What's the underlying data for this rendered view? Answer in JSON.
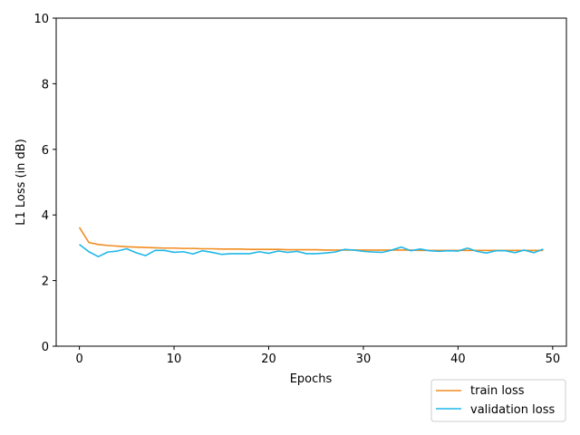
{
  "chart_data": {
    "type": "line",
    "title": "",
    "xlabel": "Epochs",
    "ylabel": "L1 Loss (in dB)",
    "xlim": [
      -2.45,
      51.45
    ],
    "ylim": [
      0,
      10
    ],
    "xticks": [
      0,
      10,
      20,
      30,
      40,
      50
    ],
    "yticks": [
      0,
      2,
      4,
      6,
      8,
      10
    ],
    "grid": false,
    "legend_position": "lower-right-outside",
    "x": [
      0,
      1,
      2,
      3,
      4,
      5,
      6,
      7,
      8,
      9,
      10,
      11,
      12,
      13,
      14,
      15,
      16,
      17,
      18,
      19,
      20,
      21,
      22,
      23,
      24,
      25,
      26,
      27,
      28,
      29,
      30,
      31,
      32,
      33,
      34,
      35,
      36,
      37,
      38,
      39,
      40,
      41,
      42,
      43,
      44,
      45,
      46,
      47,
      48,
      49
    ],
    "series": [
      {
        "name": "train loss",
        "color": "#f28c1e",
        "values": [
          3.62,
          3.16,
          3.1,
          3.07,
          3.05,
          3.03,
          3.02,
          3.01,
          3.0,
          2.99,
          2.99,
          2.98,
          2.98,
          2.97,
          2.97,
          2.96,
          2.96,
          2.96,
          2.95,
          2.95,
          2.95,
          2.95,
          2.94,
          2.94,
          2.94,
          2.94,
          2.93,
          2.93,
          2.93,
          2.93,
          2.93,
          2.93,
          2.93,
          2.93,
          2.93,
          2.93,
          2.92,
          2.92,
          2.92,
          2.92,
          2.92,
          2.92,
          2.92,
          2.92,
          2.92,
          2.92,
          2.92,
          2.92,
          2.92,
          2.92
        ]
      },
      {
        "name": "validation loss",
        "color": "#1fb8e8",
        "values": [
          3.1,
          2.88,
          2.73,
          2.87,
          2.9,
          2.97,
          2.85,
          2.76,
          2.92,
          2.92,
          2.86,
          2.88,
          2.81,
          2.91,
          2.86,
          2.8,
          2.82,
          2.82,
          2.82,
          2.88,
          2.83,
          2.9,
          2.86,
          2.89,
          2.82,
          2.82,
          2.84,
          2.87,
          2.95,
          2.93,
          2.89,
          2.87,
          2.86,
          2.93,
          3.02,
          2.91,
          2.96,
          2.91,
          2.89,
          2.91,
          2.9,
          2.99,
          2.89,
          2.84,
          2.91,
          2.91,
          2.85,
          2.93,
          2.85,
          2.96
        ]
      }
    ]
  }
}
